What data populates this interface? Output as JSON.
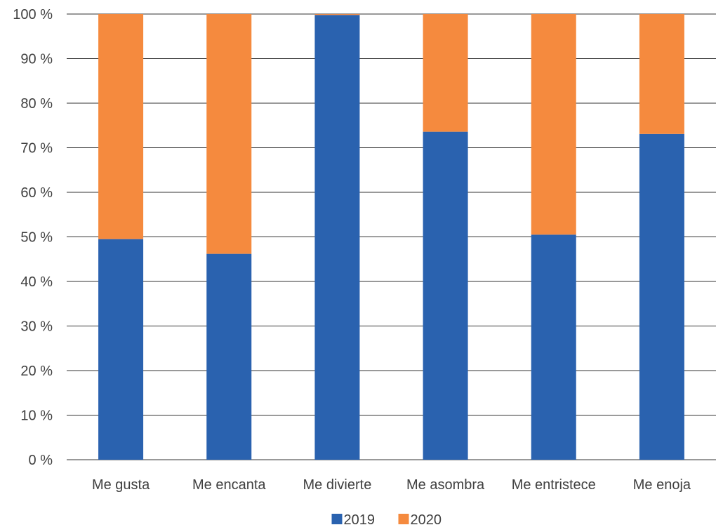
{
  "chart_data": {
    "type": "bar",
    "stacked": true,
    "percent_stacked": true,
    "categories": [
      "Me gusta",
      "Me encanta",
      "Me divierte",
      "Me asombra",
      "Me entristece",
      "Me enoja"
    ],
    "series": [
      {
        "name": "2019",
        "color": "#2A62AF",
        "values": [
          49.5,
          46.2,
          99.8,
          73.6,
          50.5,
          73.1
        ]
      },
      {
        "name": "2020",
        "color": "#F58A3E",
        "values": [
          50.5,
          53.8,
          0.2,
          26.4,
          49.5,
          26.9
        ]
      }
    ],
    "ylim": [
      0,
      100
    ],
    "yticks": [
      0,
      10,
      20,
      30,
      40,
      50,
      60,
      70,
      80,
      90,
      100
    ],
    "ytick_labels": [
      "0 %",
      "10 %",
      "20 %",
      "30 %",
      "40 %",
      "50 %",
      "60 %",
      "70 %",
      "80 %",
      "90 %",
      "100 %"
    ],
    "grid": true,
    "legend_position": "bottom-center",
    "gridline_color": "#333333"
  }
}
